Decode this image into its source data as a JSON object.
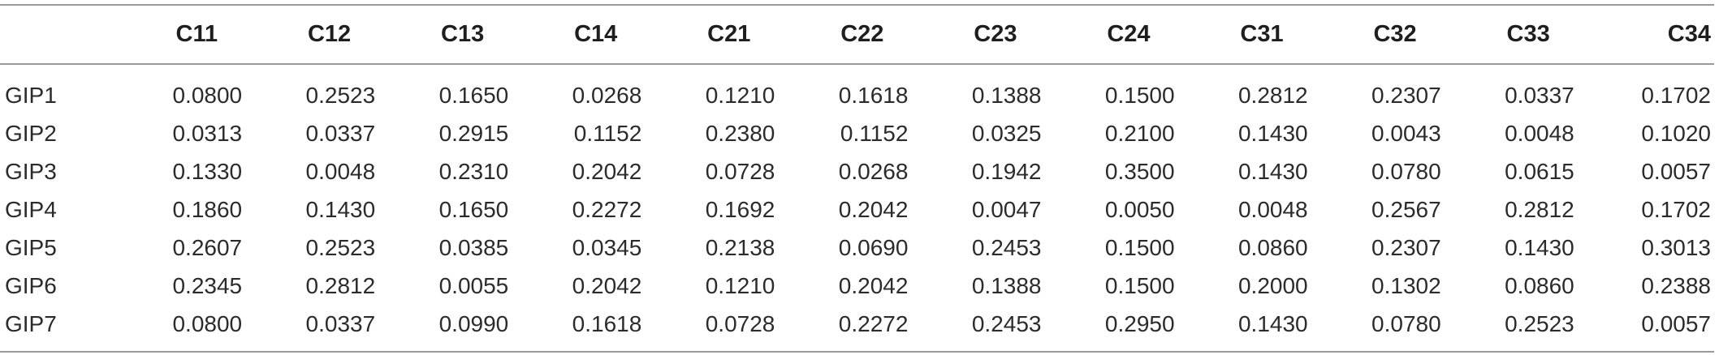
{
  "table": {
    "corner": "",
    "columns": [
      "C11",
      "C12",
      "C13",
      "C14",
      "C21",
      "C22",
      "C23",
      "C24",
      "C31",
      "C32",
      "C33",
      "C34"
    ],
    "rows": [
      {
        "label": "GIP1",
        "values": [
          "0.0800",
          "0.2523",
          "0.1650",
          "0.0268",
          "0.1210",
          "0.1618",
          "0.1388",
          "0.1500",
          "0.2812",
          "0.2307",
          "0.0337",
          "0.1702"
        ]
      },
      {
        "label": "GIP2",
        "values": [
          "0.0313",
          "0.0337",
          "0.2915",
          "0.1152",
          "0.2380",
          "0.1152",
          "0.0325",
          "0.2100",
          "0.1430",
          "0.0043",
          "0.0048",
          "0.1020"
        ]
      },
      {
        "label": "GIP3",
        "values": [
          "0.1330",
          "0.0048",
          "0.2310",
          "0.2042",
          "0.0728",
          "0.0268",
          "0.1942",
          "0.3500",
          "0.1430",
          "0.0780",
          "0.0615",
          "0.0057"
        ]
      },
      {
        "label": "GIP4",
        "values": [
          "0.1860",
          "0.1430",
          "0.1650",
          "0.2272",
          "0.1692",
          "0.2042",
          "0.0047",
          "0.0050",
          "0.0048",
          "0.2567",
          "0.2812",
          "0.1702"
        ]
      },
      {
        "label": "GIP5",
        "values": [
          "0.2607",
          "0.2523",
          "0.0385",
          "0.0345",
          "0.2138",
          "0.0690",
          "0.2453",
          "0.1500",
          "0.0860",
          "0.2307",
          "0.1430",
          "0.3013"
        ]
      },
      {
        "label": "GIP6",
        "values": [
          "0.2345",
          "0.2812",
          "0.0055",
          "0.2042",
          "0.1210",
          "0.2042",
          "0.1388",
          "0.1500",
          "0.2000",
          "0.1302",
          "0.0860",
          "0.2388"
        ]
      },
      {
        "label": "GIP7",
        "values": [
          "0.0800",
          "0.0337",
          "0.0990",
          "0.1618",
          "0.0728",
          "0.2272",
          "0.2453",
          "0.2950",
          "0.1430",
          "0.0780",
          "0.2523",
          "0.0057"
        ]
      }
    ]
  }
}
